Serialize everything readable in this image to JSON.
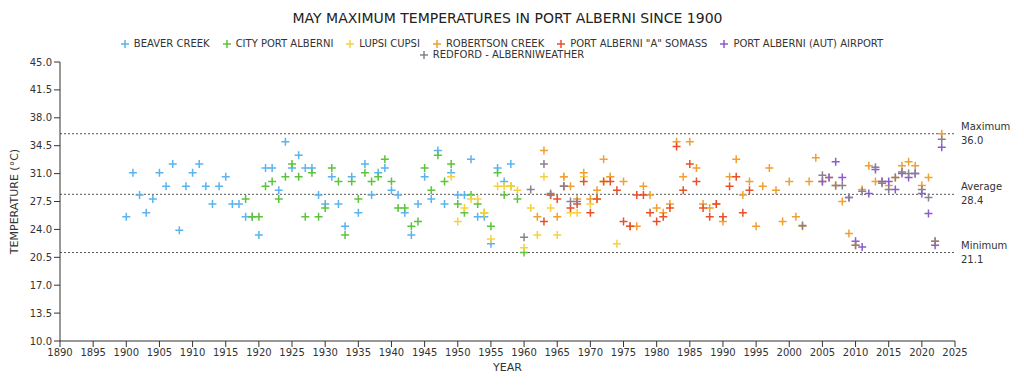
{
  "chart_data": {
    "type": "scatter",
    "title": "MAY MAXIMUM TEMPERATURES IN PORT ALBERNI SINCE 1900",
    "x_label": "YEAR",
    "y_label": "TEMPERATURE (°C)",
    "xlim": [
      1890,
      2025
    ],
    "xticks": [
      1890,
      1895,
      1900,
      1905,
      1910,
      1915,
      1920,
      1925,
      1930,
      1935,
      1940,
      1945,
      1950,
      1955,
      1960,
      1965,
      1970,
      1975,
      1980,
      1985,
      1990,
      1995,
      2000,
      2005,
      2010,
      2015,
      2020,
      2025
    ],
    "ylim": [
      10,
      45
    ],
    "yticks": [
      {
        "value": 10,
        "label": "10.0"
      },
      13.5,
      {
        "value": 17,
        "label": "17.0"
      },
      20.5,
      {
        "value": 24,
        "label": "24.0"
      },
      27.5,
      {
        "value": 31,
        "label": "31.0"
      },
      34.5,
      {
        "value": 38,
        "label": "38.0"
      },
      41.5,
      {
        "value": 45,
        "label": "45.0"
      }
    ],
    "grid": false,
    "legend": "top",
    "marker": "plus",
    "annotations": [
      {
        "label": "Maximum",
        "value": 36,
        "value_label": "36.0"
      },
      {
        "label": "Average",
        "value": 28.4,
        "value_label": "28.4"
      },
      {
        "label": "Minimum",
        "value": 21.1,
        "value_label": "21.1"
      }
    ],
    "series": [
      {
        "name": "BEAVER CREEK",
        "color": "#5ab4f0",
        "x": [
          1900,
          1901,
          1902,
          1903,
          1904,
          1905,
          1906,
          1907,
          1908,
          1909,
          1910,
          1911,
          1912,
          1913,
          1914,
          1915,
          1916,
          1917,
          1918,
          1919,
          1920,
          1921,
          1922,
          1923,
          1924,
          1925,
          1926,
          1927,
          1928,
          1929,
          1930,
          1931,
          1932,
          1933,
          1934,
          1935,
          1936,
          1937,
          1938,
          1939,
          1940,
          1941,
          1942,
          1943,
          1944,
          1945,
          1946,
          1947,
          1948,
          1949,
          1950,
          1951,
          1952,
          1953,
          1954,
          1955,
          1956,
          1957,
          1958
        ],
        "values": [
          25.6,
          31.1,
          28.3,
          26.1,
          27.8,
          31.1,
          29.4,
          32.2,
          23.9,
          29.4,
          31.1,
          32.2,
          29.4,
          27.2,
          29.4,
          30.6,
          27.2,
          27.2,
          25.6,
          25.6,
          23.3,
          31.7,
          31.7,
          28.9,
          35.0,
          31.7,
          33.3,
          31.7,
          31.7,
          28.3,
          27.2,
          30.6,
          27.2,
          24.4,
          30.6,
          26.1,
          32.2,
          28.3,
          31.1,
          31.7,
          28.9,
          28.3,
          26.1,
          23.3,
          27.2,
          30.6,
          27.8,
          33.9,
          27.2,
          31.1,
          28.3,
          28.3,
          32.8,
          25.6,
          25.6,
          22.2,
          31.7,
          30.0,
          32.2
        ]
      },
      {
        "name": "CITY PORT ALBERNI",
        "color": "#5cc43c",
        "x": [
          1918,
          1919,
          1920,
          1921,
          1922,
          1923,
          1924,
          1925,
          1926,
          1927,
          1928,
          1929,
          1930,
          1931,
          1932,
          1933,
          1934,
          1935,
          1936,
          1937,
          1938,
          1939,
          1940,
          1941,
          1942,
          1943,
          1944,
          1945,
          1946,
          1947,
          1948,
          1949,
          1950,
          1951,
          1952,
          1953,
          1954,
          1955,
          1956,
          1957,
          1958,
          1959,
          1960
        ],
        "values": [
          27.8,
          25.6,
          25.6,
          29.4,
          30.0,
          27.8,
          30.6,
          32.2,
          30.6,
          25.6,
          31.1,
          25.6,
          26.7,
          31.7,
          30.0,
          23.3,
          30.0,
          27.8,
          31.1,
          30.0,
          30.6,
          32.8,
          30.0,
          26.7,
          26.7,
          24.4,
          25.0,
          31.7,
          28.9,
          33.3,
          30.0,
          32.2,
          27.2,
          26.1,
          28.3,
          27.2,
          26.1,
          24.4,
          31.1,
          28.3,
          29.4,
          27.8,
          21.1
        ]
      },
      {
        "name": "LUPSI CUPSI",
        "color": "#f5d142",
        "x": [
          1949,
          1950,
          1951,
          1952,
          1953,
          1954,
          1955,
          1956,
          1957,
          1958,
          1959,
          1960,
          1961,
          1962,
          1963,
          1964,
          1965,
          1966,
          1967,
          1968,
          1969,
          1970,
          1971,
          1972,
          1973,
          1974
        ],
        "values": [
          30.6,
          25.0,
          26.7,
          27.8,
          27.8,
          26.1,
          22.8,
          29.4,
          29.4,
          29.4,
          28.9,
          21.7,
          26.7,
          23.3,
          30.6,
          26.7,
          23.3,
          30.6,
          26.1,
          26.1,
          30.6,
          27.2,
          27.8,
          30.0,
          30.6,
          22.2
        ]
      },
      {
        "name": "ROBERTSON CREEK",
        "color": "#f0a030",
        "x": [
          1962,
          1963,
          1964,
          1965,
          1966,
          1967,
          1968,
          1969,
          1970,
          1971,
          1972,
          1973,
          1975,
          1976,
          1977,
          1978,
          1979,
          1980,
          1981,
          1982,
          1983,
          1984,
          1985,
          1986,
          1987,
          1988,
          1989,
          1990,
          1991,
          1992,
          1993,
          1994,
          1995,
          1996,
          1997,
          1998,
          1999,
          2000,
          2001,
          2002,
          2003,
          2004,
          2005,
          2006,
          2007,
          2008,
          2009,
          2010,
          2011,
          2012,
          2013,
          2014,
          2015,
          2016,
          2017,
          2018,
          2019,
          2020,
          2021,
          2022,
          2023
        ],
        "values": [
          25.6,
          33.9,
          28.3,
          25.6,
          30.6,
          29.4,
          27.8,
          31.1,
          27.8,
          28.9,
          32.8,
          30.6,
          30.0,
          24.4,
          24.4,
          29.4,
          28.3,
          26.7,
          26.1,
          27.2,
          35.0,
          30.6,
          35.0,
          31.7,
          27.2,
          26.7,
          27.2,
          25.0,
          30.6,
          32.8,
          28.3,
          30.0,
          24.4,
          29.4,
          31.7,
          28.9,
          25.0,
          30.0,
          25.6,
          24.4,
          30.0,
          33.0,
          30.0,
          30.5,
          29.5,
          27.5,
          23.5,
          22.0,
          29.0,
          32.0,
          30.0,
          30.0,
          29.5,
          30.5,
          32.0,
          32.5,
          32.0,
          29.5,
          30.5,
          22.5,
          36.0
        ]
      },
      {
        "name": "PORT ALBERNI \"A\" SOMASS",
        "color": "#e8502a",
        "x": [
          1963,
          1964,
          1965,
          1966,
          1967,
          1968,
          1969,
          1970,
          1971,
          1972,
          1973,
          1974,
          1975,
          1976,
          1977,
          1978,
          1979,
          1980,
          1981,
          1982,
          1983,
          1984,
          1985,
          1986,
          1987,
          1988,
          1989,
          1990,
          1991,
          1992,
          1993,
          1994
        ],
        "values": [
          25.0,
          28.3,
          27.8,
          29.4,
          26.7,
          27.2,
          30.0,
          26.1,
          27.8,
          30.0,
          30.0,
          28.9,
          25.0,
          24.4,
          28.3,
          28.3,
          26.1,
          25.0,
          25.6,
          26.7,
          34.4,
          28.9,
          32.2,
          30.0,
          26.7,
          25.6,
          27.2,
          25.6,
          29.4,
          30.6,
          26.1,
          28.9
        ]
      },
      {
        "name": "PORT ALBERNI (AUT) AIRPORT",
        "color": "#8a5cd0",
        "x": [
          2005,
          2006,
          2007,
          2008,
          2009,
          2010,
          2011,
          2012,
          2013,
          2014,
          2015,
          2016,
          2017,
          2018,
          2019,
          2020,
          2021,
          2022,
          2023
        ],
        "values": [
          30.0,
          30.5,
          32.5,
          30.5,
          28.0,
          22.5,
          21.8,
          28.5,
          31.5,
          30.0,
          30.0,
          29.0,
          31.0,
          30.5,
          31.0,
          28.5,
          26.0,
          22.0,
          34.3
        ]
      },
      {
        "name": "REDFORD - ALBERNIWEATHER",
        "color": "#8a8090",
        "x": [
          1960,
          1961,
          1963,
          1964,
          1966,
          1967,
          1968,
          2002,
          2005,
          2007,
          2008,
          2009,
          2010,
          2011,
          2013,
          2014,
          2015,
          2016,
          2017,
          2018,
          2019,
          2020,
          2021,
          2022,
          2023
        ],
        "values": [
          23.0,
          29.0,
          32.2,
          28.5,
          29.4,
          27.5,
          27.5,
          24.5,
          30.8,
          29.5,
          29.5,
          28.0,
          22.0,
          28.8,
          31.8,
          29.8,
          29.0,
          30.5,
          31.2,
          31.0,
          31.0,
          29.0,
          28.0,
          22.5,
          35.3
        ]
      }
    ]
  }
}
